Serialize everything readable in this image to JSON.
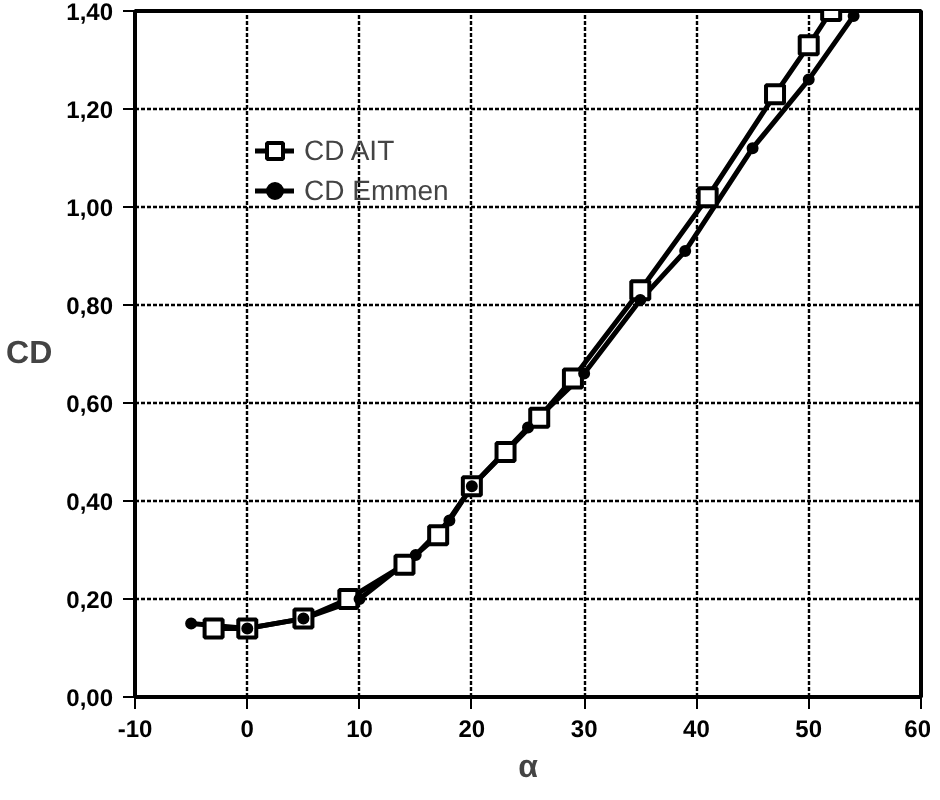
{
  "chart_data": {
    "type": "line",
    "xlabel": "α",
    "ylabel": "CD",
    "xlim": [
      -10,
      60
    ],
    "ylim": [
      0,
      1.4
    ],
    "xticks": [
      -10,
      0,
      10,
      20,
      30,
      40,
      50,
      60
    ],
    "yticks": [
      {
        "value": 0,
        "label": "0,00"
      },
      {
        "value": 0.2,
        "label": "0,20"
      },
      {
        "value": 0.4,
        "label": "0,40"
      },
      {
        "value": 0.6,
        "label": "0,60"
      },
      {
        "value": 0.8,
        "label": "0,80"
      },
      {
        "value": 1.0,
        "label": "1,00"
      },
      {
        "value": 1.2,
        "label": "1,20"
      },
      {
        "value": 1.4,
        "label": "1,40"
      }
    ],
    "grid": true,
    "legend": "top left",
    "series": [
      {
        "name": "CD AIT",
        "color": "#000000",
        "marker": "square",
        "x": [
          -3,
          0,
          5,
          9,
          14,
          17,
          20,
          23,
          26,
          29,
          35,
          41,
          47,
          50,
          52
        ],
        "values": [
          0.14,
          0.14,
          0.16,
          0.2,
          0.27,
          0.33,
          0.43,
          0.5,
          0.57,
          0.65,
          0.83,
          1.02,
          1.23,
          1.33,
          1.4
        ]
      },
      {
        "name": "CD Emmen",
        "color": "#000000",
        "marker": "circle",
        "x": [
          -5,
          0,
          5,
          10,
          15,
          18,
          20,
          25,
          30,
          35,
          39,
          45,
          50,
          54
        ],
        "values": [
          0.15,
          0.14,
          0.16,
          0.2,
          0.29,
          0.36,
          0.43,
          0.55,
          0.66,
          0.81,
          0.91,
          1.12,
          1.26,
          1.39
        ]
      }
    ]
  }
}
